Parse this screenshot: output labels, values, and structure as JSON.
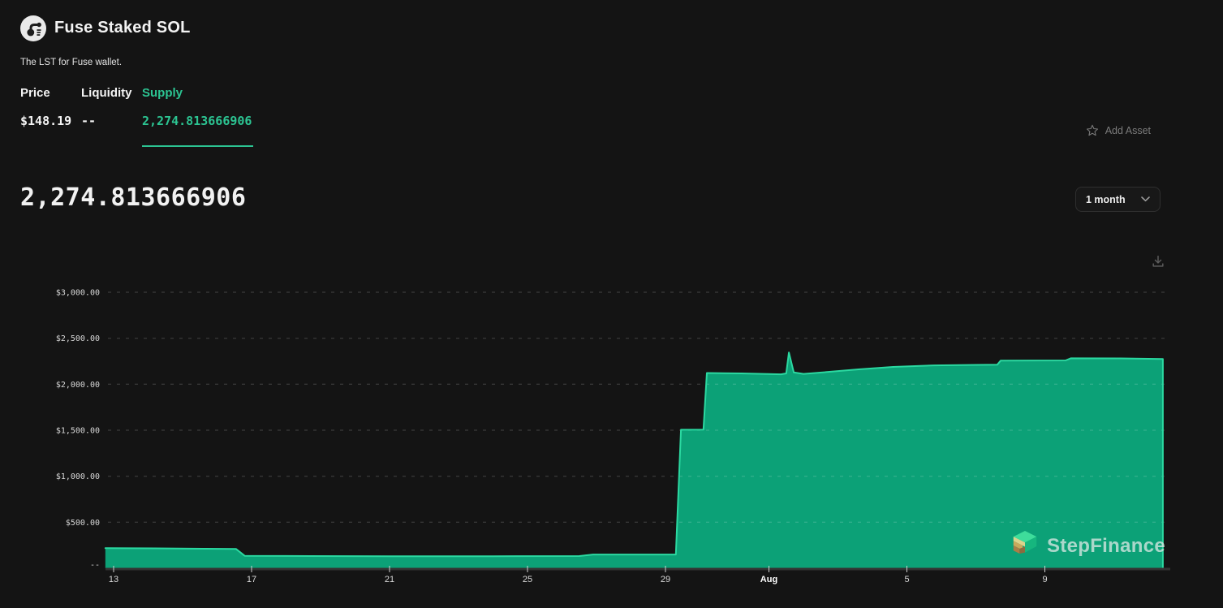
{
  "header": {
    "title": "Fuse Staked SOL",
    "subtitle": "The LST for Fuse wallet.",
    "stats": [
      {
        "label": "Price",
        "value": "$148.19",
        "active": false
      },
      {
        "label": "Liquidity",
        "value": "--",
        "active": false
      },
      {
        "label": "Supply",
        "value": "2,274.813666906",
        "active": true
      }
    ],
    "add_asset_label": "Add Asset"
  },
  "chart_header": {
    "big_value": "2,274.813666906",
    "range_selector": {
      "selected": "1 month"
    }
  },
  "icons": {
    "logo": "fuse-logo-icon",
    "add_asset": "star-icon",
    "range": "chevron-down-icon",
    "download": "download-icon",
    "watermark": "stepfinance-logo-icon"
  },
  "watermark": {
    "text": "StepFinance"
  },
  "colors": {
    "accent": "#2cc492",
    "chart_fill": "#0ca177",
    "chart_stroke": "#2bd9a1",
    "grid": "rgba(255,255,255,0.2)",
    "axis": "#333333",
    "background": "#141414"
  },
  "chart_data": {
    "type": "area",
    "series_name": "Supply",
    "title": "",
    "legend": "none",
    "grid": "dashed-horizontal",
    "ylim": [
      0,
      3000
    ],
    "x_unit": "day-offset from tick '13' (July)",
    "y_ticks": [
      {
        "label": "$3,000.00",
        "value": 3000
      },
      {
        "label": "$2,500.00",
        "value": 2500
      },
      {
        "label": "$2,000.00",
        "value": 2000
      },
      {
        "label": "$1,500.00",
        "value": 1500
      },
      {
        "label": "$1,000.00",
        "value": 1000
      },
      {
        "label": "$500.00",
        "value": 500
      },
      {
        "label": "--",
        "value": 0
      }
    ],
    "x_ticks": [
      {
        "label": "13",
        "day": 0,
        "bold": false
      },
      {
        "label": "17",
        "day": 4,
        "bold": false
      },
      {
        "label": "21",
        "day": 8,
        "bold": false
      },
      {
        "label": "25",
        "day": 12,
        "bold": false
      },
      {
        "label": "29",
        "day": 16,
        "bold": false
      },
      {
        "label": "Aug",
        "day": 19,
        "bold": true
      },
      {
        "label": "5",
        "day": 23,
        "bold": false
      },
      {
        "label": "9",
        "day": 27,
        "bold": false
      }
    ],
    "points": [
      [
        -0.24,
        218
      ],
      [
        1.2,
        216
      ],
      [
        2.6,
        212
      ],
      [
        3.55,
        209
      ],
      [
        3.8,
        135
      ],
      [
        5,
        133
      ],
      [
        8,
        131
      ],
      [
        11,
        131
      ],
      [
        13.5,
        132
      ],
      [
        13.9,
        149
      ],
      [
        15.5,
        149
      ],
      [
        16.3,
        149
      ],
      [
        16.45,
        1505
      ],
      [
        17.1,
        1507
      ],
      [
        17.2,
        2122
      ],
      [
        18.2,
        2118
      ],
      [
        19.35,
        2108
      ],
      [
        19.5,
        2118
      ],
      [
        19.58,
        2345
      ],
      [
        19.72,
        2128
      ],
      [
        20.0,
        2112
      ],
      [
        20.6,
        2130
      ],
      [
        21.6,
        2162
      ],
      [
        22.6,
        2188
      ],
      [
        23.8,
        2205
      ],
      [
        25.0,
        2210
      ],
      [
        25.62,
        2213
      ],
      [
        25.72,
        2257
      ],
      [
        27.6,
        2259
      ],
      [
        27.75,
        2282
      ],
      [
        29.2,
        2281
      ],
      [
        30.42,
        2275
      ]
    ],
    "colors": {
      "fill": "#0ca177",
      "stroke": "#2bd9a1"
    }
  }
}
